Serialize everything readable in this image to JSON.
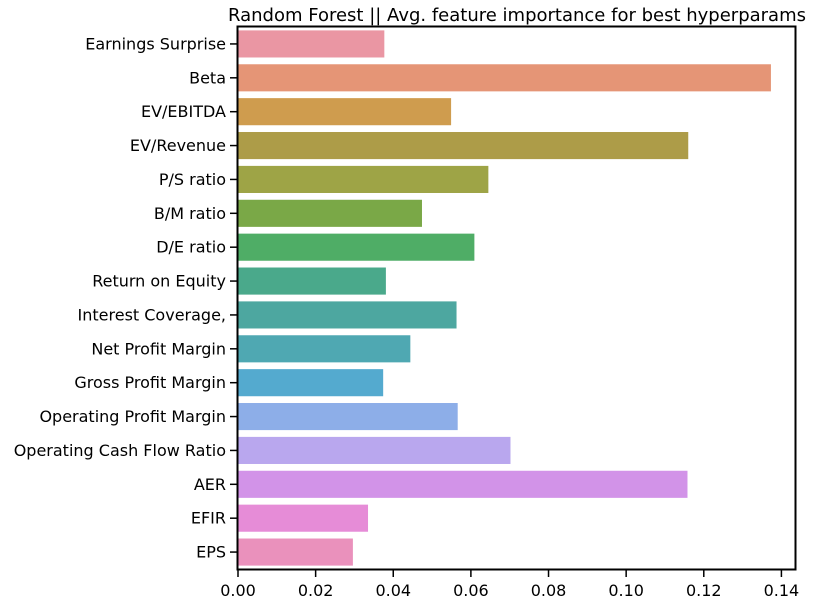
{
  "chart_data": {
    "type": "bar",
    "orientation": "horizontal",
    "title": "Random Forest || Avg. feature importance for best hyperparams",
    "xlabel": "",
    "ylabel": "",
    "xlim": [
      0,
      0.1435
    ],
    "xticks": [
      "0.00",
      "0.02",
      "0.04",
      "0.06",
      "0.08",
      "0.10",
      "0.12",
      "0.14"
    ],
    "xtick_values": [
      0.0,
      0.02,
      0.04,
      0.06,
      0.08,
      0.1,
      0.12,
      0.14
    ],
    "grid": false,
    "categories": [
      "Earnings Surprise",
      "Beta",
      "EV/EBITDA",
      "EV/Revenue",
      "P/S ratio",
      "B/M ratio",
      "D/E ratio",
      "Return on Equity",
      "Interest Coverage,",
      "Net Profit Margin",
      "Gross Profit Margin",
      "Operating Profit Margin",
      "Operating Cash Flow Ratio",
      "AER",
      "EFIR",
      "EPS"
    ],
    "values": [
      0.0377,
      0.1373,
      0.0549,
      0.116,
      0.0645,
      0.0474,
      0.0609,
      0.0381,
      0.0563,
      0.0444,
      0.0374,
      0.0566,
      0.0702,
      0.1158,
      0.0335,
      0.0296
    ],
    "colors": [
      "#ea96a3",
      "#e59576",
      "#cf9c4e",
      "#ad9c48",
      "#9ea446",
      "#7aa847",
      "#4fad66",
      "#4aa98b",
      "#4da7a0",
      "#4fa8b2",
      "#54aacf",
      "#8daee8",
      "#b9a7ee",
      "#d293e8",
      "#e68cd7",
      "#ea91bc"
    ]
  }
}
